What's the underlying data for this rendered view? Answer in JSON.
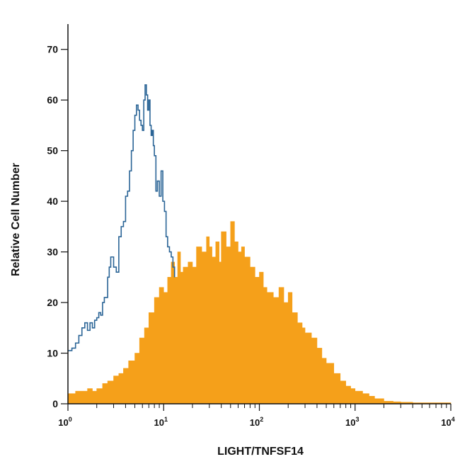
{
  "chart_data": {
    "type": "area",
    "title": "",
    "xlabel": "LIGHT/TNFSF14",
    "ylabel": "Relative Cell Number",
    "x_scale": "log",
    "xlim": [
      1,
      10000
    ],
    "ylim": [
      0,
      75
    ],
    "grid": false,
    "x_ticks": [
      {
        "base": "10",
        "exp": "0"
      },
      {
        "base": "10",
        "exp": "1"
      },
      {
        "base": "10",
        "exp": "2"
      },
      {
        "base": "10",
        "exp": "3"
      },
      {
        "base": "10",
        "exp": "4"
      }
    ],
    "y_ticks": [
      "0",
      "10",
      "20",
      "30",
      "40",
      "50",
      "60",
      "70"
    ],
    "series": [
      {
        "style": "outline",
        "color": "#2a6496",
        "x": [
          1.0,
          1.1,
          1.2,
          1.3,
          1.4,
          1.5,
          1.6,
          1.7,
          1.8,
          1.9,
          2.0,
          2.1,
          2.2,
          2.3,
          2.4,
          2.5,
          2.6,
          2.7,
          2.8,
          3.0,
          3.2,
          3.4,
          3.6,
          3.8,
          4.0,
          4.2,
          4.4,
          4.6,
          4.8,
          5.0,
          5.2,
          5.4,
          5.6,
          5.8,
          6.0,
          6.2,
          6.4,
          6.6,
          6.8,
          7.0,
          7.2,
          7.4,
          7.6,
          7.8,
          8.0,
          8.3,
          8.6,
          9.0,
          9.4,
          9.8,
          10.2,
          10.6,
          11.0,
          11.5,
          12.0,
          12.5,
          13.0
        ],
        "values": [
          10.5,
          11,
          12,
          13.5,
          15,
          16,
          14.5,
          16,
          15,
          16.5,
          17,
          18,
          17.5,
          20,
          21,
          21,
          25,
          27,
          29,
          27,
          26,
          33,
          35,
          36,
          41,
          42,
          46,
          50,
          54,
          57,
          59,
          58,
          56,
          55,
          54,
          60,
          63,
          61,
          58,
          60,
          55,
          53,
          54,
          51,
          49,
          42,
          44,
          41,
          46,
          40,
          38,
          33,
          31,
          30,
          29,
          27,
          25
        ]
      },
      {
        "style": "filled",
        "color": "#f5a01a",
        "x": [
          1.0,
          1.2,
          1.4,
          1.6,
          1.8,
          2.0,
          2.3,
          2.6,
          3.0,
          3.4,
          3.8,
          4.3,
          5.0,
          5.6,
          6.3,
          7.0,
          8.0,
          9.0,
          10.0,
          11.0,
          12.0,
          13.0,
          14.0,
          15.0,
          16.0,
          18.0,
          20.0,
          22.0,
          25.0,
          28.0,
          30.0,
          32.0,
          35.0,
          38.0,
          40.0,
          45.0,
          50.0,
          55.0,
          60.0,
          65.0,
          70.0,
          80.0,
          90.0,
          100.0,
          110.0,
          120.0,
          140.0,
          160.0,
          180.0,
          200.0,
          220.0,
          250.0,
          280.0,
          300.0,
          350.0,
          400.0,
          450.0,
          500.0,
          600.0,
          700.0,
          800.0,
          900.0,
          1000.0,
          1200.0,
          1400.0,
          1600.0,
          1800.0,
          2000.0,
          2500.0,
          3000.0,
          4000.0,
          5000.0,
          7000.0,
          10000.0
        ],
        "values": [
          2,
          2.5,
          2.5,
          3,
          2.5,
          3,
          4,
          4.5,
          5.5,
          6,
          7,
          8.5,
          10,
          13,
          15,
          18,
          21,
          23,
          22,
          25,
          28,
          25,
          30,
          26,
          27,
          28,
          27,
          31,
          30,
          33,
          31,
          29,
          32,
          28,
          34,
          31,
          36,
          32,
          30,
          31,
          29,
          27,
          25,
          26,
          23,
          22,
          21,
          23,
          20,
          22,
          18,
          16,
          15,
          14,
          13,
          11,
          9,
          8,
          6,
          4.5,
          3.5,
          3,
          2.5,
          2,
          1.5,
          1,
          1,
          0.5,
          0.4,
          0.3,
          0.2,
          0.2,
          0.2,
          0.2
        ]
      }
    ]
  }
}
